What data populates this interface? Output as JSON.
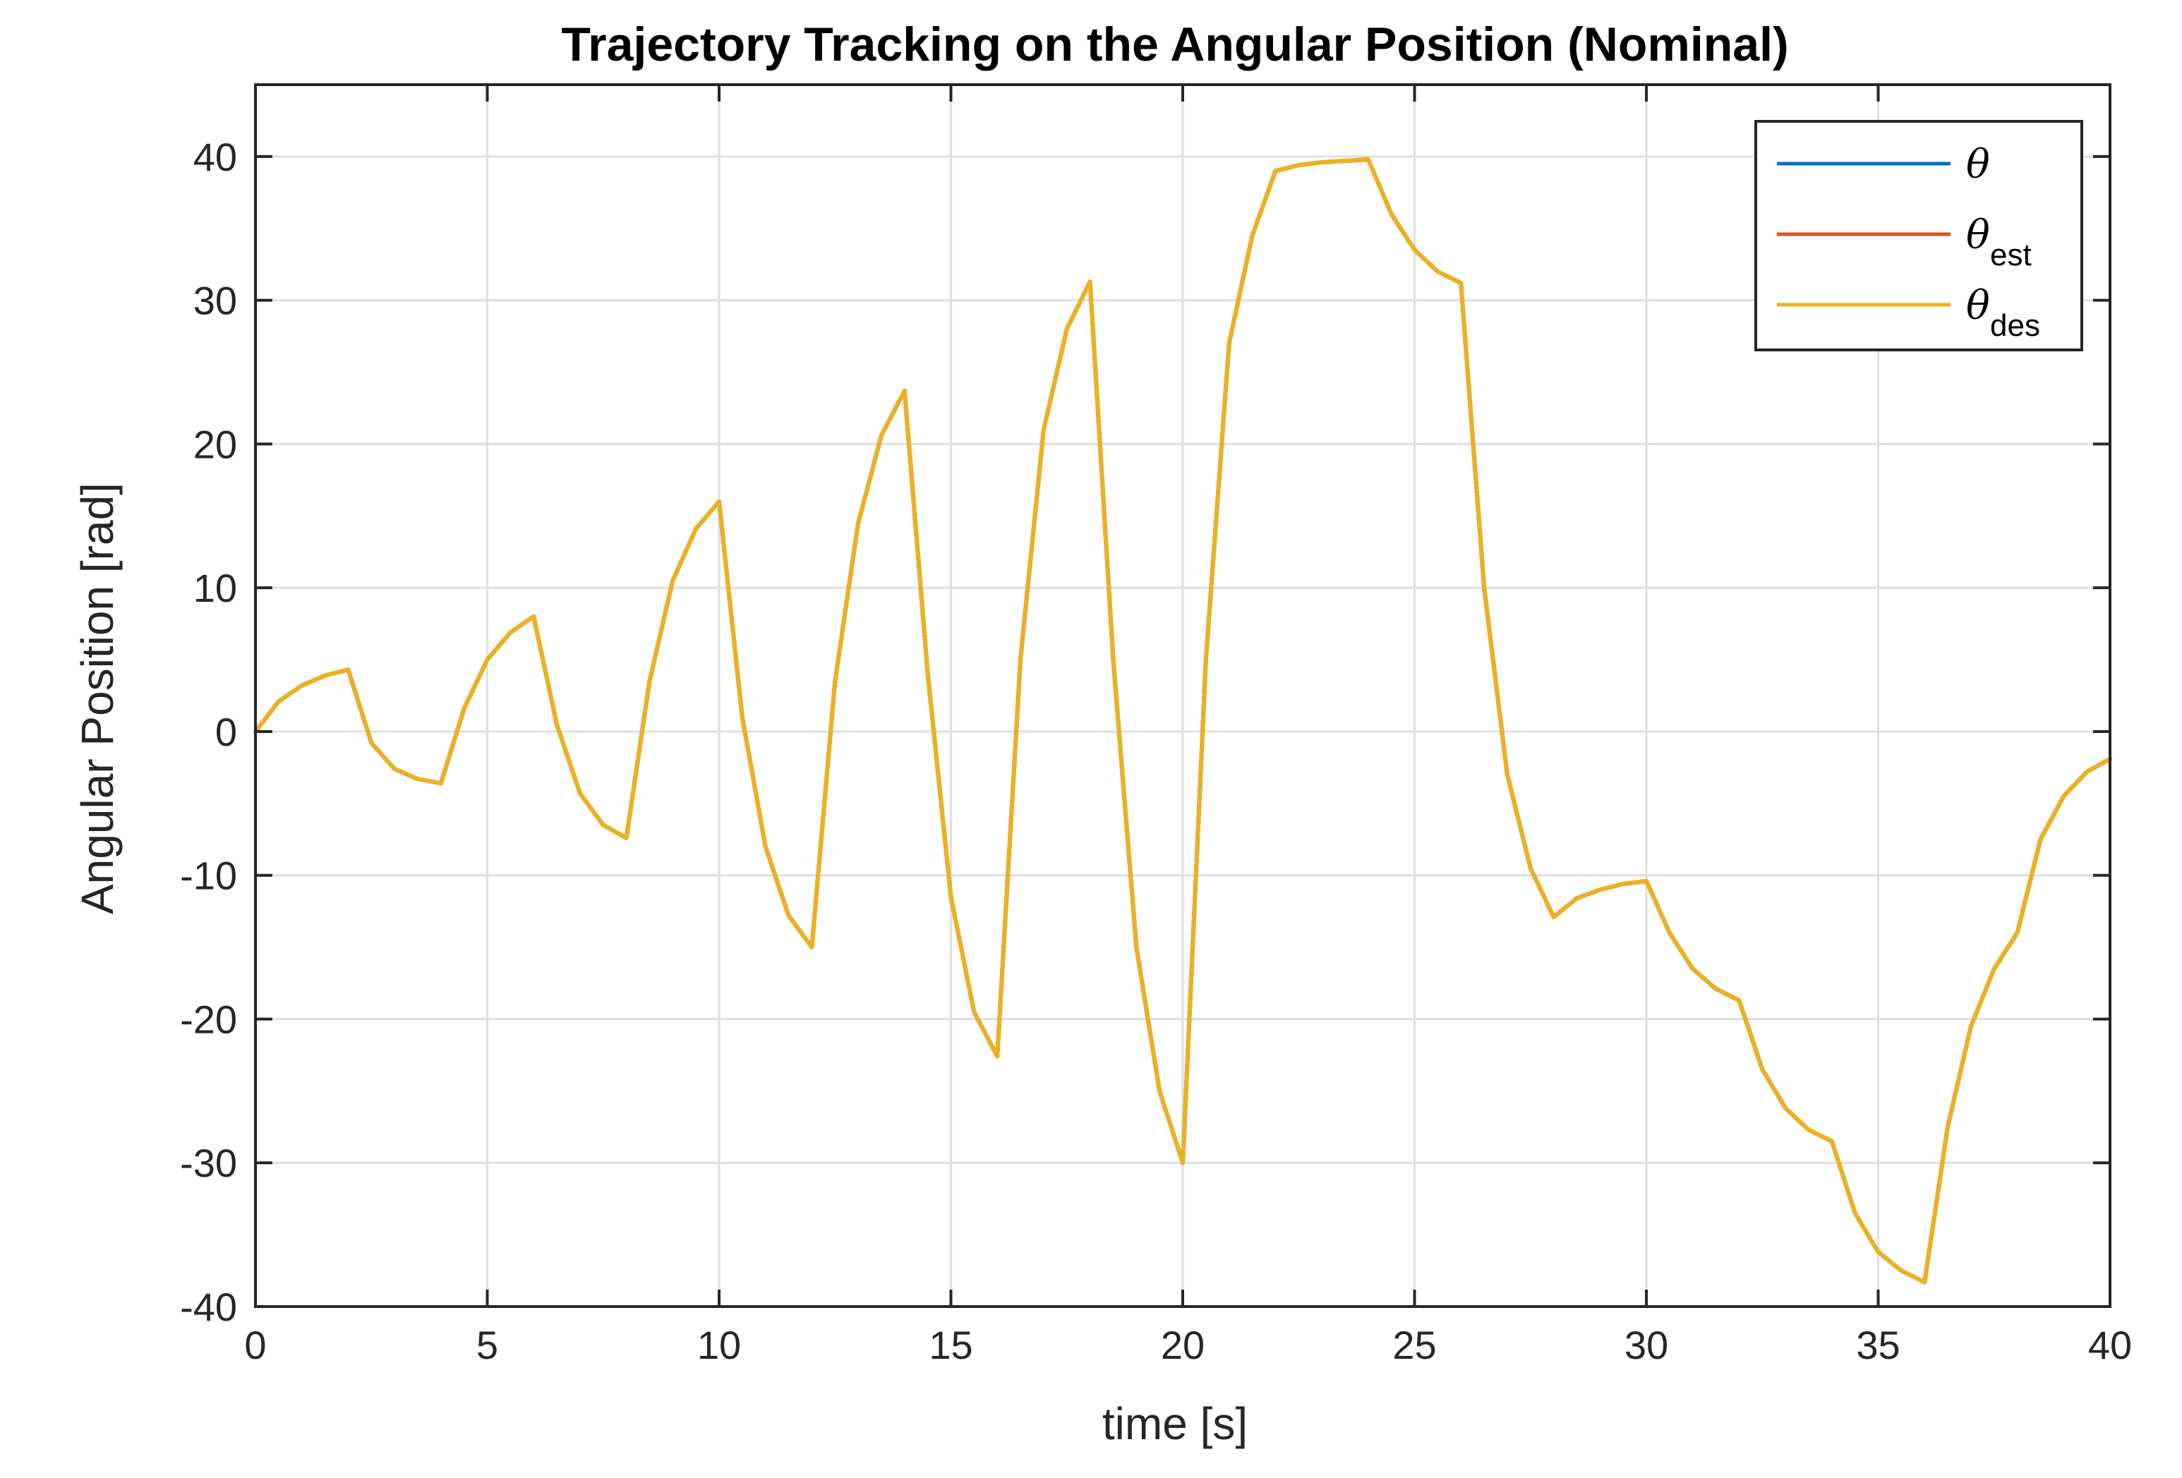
{
  "chart_data": {
    "type": "line",
    "title": "Trajectory Tracking on the Angular Position (Nominal)",
    "xlabel": "time [s]",
    "ylabel": "Angular Position [rad]",
    "xlim": [
      0,
      40
    ],
    "ylim": [
      -40,
      45
    ],
    "xticks": [
      "0",
      "5",
      "10",
      "15",
      "20",
      "25",
      "30",
      "35",
      "40"
    ],
    "yticks": [
      "-40",
      "-30",
      "-20",
      "-10",
      "0",
      "10",
      "20",
      "30",
      "40"
    ],
    "grid": true,
    "legend": {
      "position": "top-right",
      "entries": [
        {
          "symbol": "θ",
          "subscript": ""
        },
        {
          "symbol": "θ",
          "subscript": "est"
        },
        {
          "symbol": "θ",
          "subscript": "des"
        }
      ]
    },
    "colors": [
      "#0072BD",
      "#D95319",
      "#EDB120"
    ],
    "x": [
      0,
      0.5,
      1,
      1.5,
      2,
      2.5,
      3,
      3.5,
      4,
      4.5,
      5,
      5.5,
      6,
      6.5,
      7,
      7.5,
      8,
      8.5,
      9,
      9.5,
      10,
      10.5,
      11,
      11.5,
      12,
      12.5,
      13,
      13.5,
      14,
      14.5,
      15,
      15.5,
      16,
      16.5,
      17,
      17.5,
      18,
      18.5,
      19,
      19.5,
      20,
      20.5,
      21,
      21.5,
      22,
      22.5,
      23,
      23.5,
      24,
      24.5,
      25,
      25.5,
      26,
      26.5,
      27,
      27.5,
      28,
      28.5,
      29,
      29.5,
      30,
      30.5,
      31,
      31.5,
      32,
      32.5,
      33,
      33.5,
      34,
      34.5,
      35,
      35.5,
      36,
      36.5,
      37,
      37.5,
      38,
      38.5,
      39,
      39.5,
      40
    ],
    "series": [
      {
        "name": "θ",
        "values": [
          0,
          2.1,
          3.2,
          3.9,
          4.3,
          -0.8,
          -2.6,
          -3.3,
          -3.6,
          1.6,
          5.0,
          6.9,
          8.0,
          0.5,
          -4.3,
          -6.5,
          -7.4,
          3.5,
          10.5,
          14.1,
          16.0,
          1.0,
          -8.0,
          -12.8,
          -15.0,
          3.5,
          14.5,
          20.6,
          23.7,
          4.0,
          -11.5,
          -19.5,
          -22.6,
          5.0,
          21.0,
          28.0,
          31.3,
          5.0,
          -15.0,
          -25.0,
          -30.0,
          5.0,
          27.0,
          34.5,
          39.0,
          39.4,
          39.6,
          39.7,
          39.8,
          36.0,
          33.5,
          32.0,
          31.2,
          10.0,
          -3.0,
          -9.5,
          -12.9,
          -11.6,
          -11.0,
          -10.6,
          -10.4,
          -14.0,
          -16.5,
          -17.9,
          -18.7,
          -23.5,
          -26.2,
          -27.7,
          -28.5,
          -33.5,
          -36.2,
          -37.5,
          -38.3,
          -27.5,
          -20.5,
          -16.5,
          -14.0,
          -7.5,
          -4.5,
          -2.8,
          -1.9
        ]
      },
      {
        "name": "θ",
        "values": [
          0,
          2.1,
          3.2,
          3.9,
          4.3,
          -0.8,
          -2.6,
          -3.3,
          -3.6,
          1.6,
          5.0,
          6.9,
          8.0,
          0.5,
          -4.3,
          -6.5,
          -7.4,
          3.5,
          10.5,
          14.1,
          16.0,
          1.0,
          -8.0,
          -12.8,
          -15.0,
          3.5,
          14.5,
          20.6,
          23.7,
          4.0,
          -11.5,
          -19.5,
          -22.6,
          5.0,
          21.0,
          28.0,
          31.3,
          5.0,
          -15.0,
          -25.0,
          -30.0,
          5.0,
          27.0,
          34.5,
          39.0,
          39.4,
          39.6,
          39.7,
          39.8,
          36.0,
          33.5,
          32.0,
          31.2,
          10.0,
          -3.0,
          -9.5,
          -12.9,
          -11.6,
          -11.0,
          -10.6,
          -10.4,
          -14.0,
          -16.5,
          -17.9,
          -18.7,
          -23.5,
          -26.2,
          -27.7,
          -28.5,
          -33.5,
          -36.2,
          -37.5,
          -38.3,
          -27.5,
          -20.5,
          -16.5,
          -14.0,
          -7.5,
          -4.5,
          -2.8,
          -1.9
        ]
      },
      {
        "name": "θ",
        "values": [
          0,
          2.1,
          3.2,
          3.9,
          4.3,
          -0.8,
          -2.6,
          -3.3,
          -3.6,
          1.6,
          5.0,
          6.9,
          8.0,
          0.5,
          -4.3,
          -6.5,
          -7.4,
          3.5,
          10.5,
          14.1,
          16.0,
          1.0,
          -8.0,
          -12.8,
          -15.0,
          3.5,
          14.5,
          20.6,
          23.7,
          4.0,
          -11.5,
          -19.5,
          -22.6,
          5.0,
          21.0,
          28.0,
          31.3,
          5.0,
          -15.0,
          -25.0,
          -30.0,
          5.0,
          27.0,
          34.5,
          39.0,
          39.4,
          39.6,
          39.7,
          39.8,
          36.0,
          33.5,
          32.0,
          31.2,
          10.0,
          -3.0,
          -9.5,
          -12.9,
          -11.6,
          -11.0,
          -10.6,
          -10.4,
          -14.0,
          -16.5,
          -17.9,
          -18.7,
          -23.5,
          -26.2,
          -27.7,
          -28.5,
          -33.5,
          -36.2,
          -37.5,
          -38.3,
          -27.5,
          -20.5,
          -16.5,
          -14.0,
          -7.5,
          -4.5,
          -2.8,
          -1.9
        ]
      }
    ]
  }
}
